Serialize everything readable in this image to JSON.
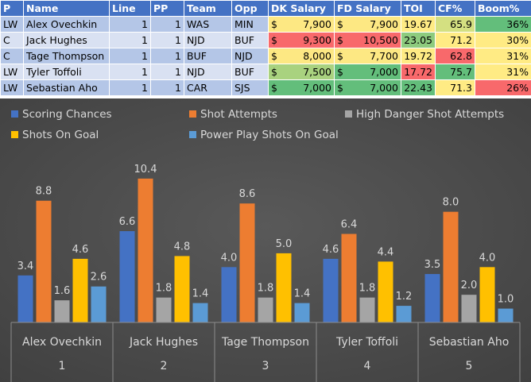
{
  "table": {
    "headers": [
      "P",
      "Name",
      "Line",
      "PP",
      "Team",
      "Opp",
      "DK Salary",
      "FD Salary",
      "TOI",
      "CF%",
      "Boom%"
    ],
    "currency_symbol": "$",
    "rows": [
      {
        "pos": "LW",
        "name": "Alex Ovechkin",
        "line": "1",
        "pp": "1",
        "team": "WAS",
        "opp": "MIN",
        "dk": "7,900",
        "fd": "7,900",
        "toi": "19.67",
        "cf": "65.9",
        "boom": "36%",
        "colors": {
          "dk": "#fde883",
          "fd": "#fde883",
          "toi": "#ffeb84",
          "cf": "#d4e081",
          "boom": "#63be7b"
        }
      },
      {
        "pos": "C",
        "name": "Jack Hughes",
        "line": "1",
        "pp": "1",
        "team": "NJD",
        "opp": "BUF",
        "dk": "9,300",
        "fd": "10,500",
        "toi": "23.05",
        "cf": "71.2",
        "boom": "30%",
        "colors": {
          "dk": "#f8696b",
          "fd": "#f8696b",
          "toi": "#8dcb7e",
          "cf": "#ffeb84",
          "boom": "#ffeb84"
        }
      },
      {
        "pos": "C",
        "name": "Tage Thompson",
        "line": "1",
        "pp": "1",
        "team": "BUF",
        "opp": "NJD",
        "dk": "8,000",
        "fd": "7,700",
        "toi": "19.72",
        "cf": "62.8",
        "boom": "31%",
        "colors": {
          "dk": "#fde883",
          "fd": "#fde883",
          "toi": "#ffeb84",
          "cf": "#f8696b",
          "boom": "#ffeb84"
        }
      },
      {
        "pos": "LW",
        "name": "Tyler Toffoli",
        "line": "1",
        "pp": "1",
        "team": "NJD",
        "opp": "BUF",
        "dk": "7,500",
        "fd": "7,000",
        "toi": "17.72",
        "cf": "75.7",
        "boom": "31%",
        "colors": {
          "dk": "#a9d27f",
          "fd": "#63be7b",
          "toi": "#f8696b",
          "cf": "#63be7b",
          "boom": "#ffeb84"
        }
      },
      {
        "pos": "LW",
        "name": "Sebastian Aho",
        "line": "1",
        "pp": "1",
        "team": "CAR",
        "opp": "SJS",
        "dk": "7,000",
        "fd": "7,000",
        "toi": "22.43",
        "cf": "71.3",
        "boom": "26%",
        "colors": {
          "dk": "#63be7b",
          "fd": "#63be7b",
          "toi": "#63be7b",
          "cf": "#ffeb84",
          "boom": "#f8696b"
        }
      }
    ]
  },
  "chart_data": {
    "type": "bar",
    "categories": [
      "Alex Ovechkin",
      "Jack Hughes",
      "Tage Thompson",
      "Tyler Toffoli",
      "Sebastian Aho"
    ],
    "category_indices": [
      "1",
      "2",
      "3",
      "4",
      "5"
    ],
    "series": [
      {
        "name": "Scoring Chances",
        "color": "#4472c4",
        "values": [
          3.4,
          6.6,
          4.0,
          4.6,
          3.5
        ]
      },
      {
        "name": "Shot Attempts",
        "color": "#ed7d31",
        "values": [
          8.8,
          10.4,
          8.6,
          6.4,
          8.0
        ]
      },
      {
        "name": "High Danger Shot Attempts",
        "color": "#a5a5a5",
        "values": [
          1.6,
          1.8,
          1.8,
          1.8,
          2.0
        ]
      },
      {
        "name": "Shots On Goal",
        "color": "#ffc000",
        "values": [
          4.6,
          4.8,
          5.0,
          4.4,
          4.0
        ]
      },
      {
        "name": "Power Play Shots On Goal",
        "color": "#5b9bd5",
        "values": [
          2.6,
          1.4,
          1.4,
          1.2,
          1.0
        ]
      }
    ],
    "ylim": [
      0,
      12
    ],
    "title": "",
    "legend_position": "top",
    "background": "#404040",
    "label_color": "#d9d9d9"
  }
}
